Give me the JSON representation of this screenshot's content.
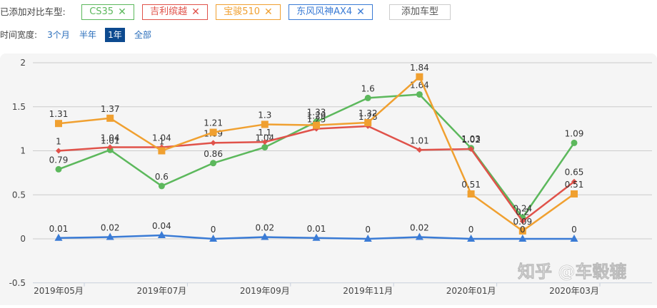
{
  "compare": {
    "label": "已添加对比车型:",
    "tags": [
      {
        "name": "CS35",
        "color": "#5cb85c",
        "remove_icon": "close-icon"
      },
      {
        "name": "吉利缤越",
        "color": "#e0524a",
        "remove_icon": "close-icon"
      },
      {
        "name": "宝骏510",
        "color": "#f0a030",
        "remove_icon": "close-icon"
      },
      {
        "name": "东风风神AX4",
        "color": "#3a7bd5",
        "remove_icon": "close-icon"
      }
    ],
    "add_button": "添加车型"
  },
  "time_range": {
    "label": "时间宽度:",
    "options": [
      "3个月",
      "半年",
      "1年",
      "全部"
    ],
    "selected": "1年"
  },
  "watermark": "知乎 @车毂辘",
  "chart_data": {
    "type": "line",
    "title": "",
    "xlabel": "",
    "ylabel": "",
    "ylim": [
      -0.5,
      2
    ],
    "yticks": [
      -0.5,
      0,
      0.5,
      1,
      1.5,
      2
    ],
    "grid": true,
    "legend": "none (series shown as tags above chart)",
    "x": [
      "2019年05月",
      "2019年06月",
      "2019年07月",
      "2019年08月",
      "2019年09月",
      "2019年10月",
      "2019年11月",
      "2019年12月",
      "2020年01月",
      "2020年02月",
      "2020年03月"
    ],
    "xtick_labels": [
      "2019年05月",
      "2019年07月",
      "2019年09月",
      "2019年11月",
      "2020年01月",
      "2020年03月"
    ],
    "series": [
      {
        "name": "CS35",
        "color": "#5cb85c",
        "marker": "circle",
        "values": [
          0.79,
          1.01,
          0.6,
          0.86,
          1.04,
          1.33,
          1.6,
          1.64,
          1.03,
          0.24,
          1.09
        ]
      },
      {
        "name": "吉利缤越",
        "color": "#e0524a",
        "marker": "diamond",
        "values": [
          1,
          1.04,
          1.04,
          1.09,
          1.1,
          1.25,
          1.28,
          1.01,
          1.02,
          0.2,
          0.65
        ]
      },
      {
        "name": "宝骏510",
        "color": "#f0a030",
        "marker": "square",
        "values": [
          1.31,
          1.37,
          1,
          1.21,
          1.3,
          1.29,
          1.32,
          1.84,
          0.51,
          0.09,
          0.51
        ]
      },
      {
        "name": "东风风神AX4",
        "color": "#3a7bd5",
        "marker": "triangle",
        "values": [
          0.01,
          0.02,
          0.04,
          0,
          0.02,
          0.01,
          0,
          0.02,
          0,
          0,
          0
        ]
      }
    ]
  }
}
